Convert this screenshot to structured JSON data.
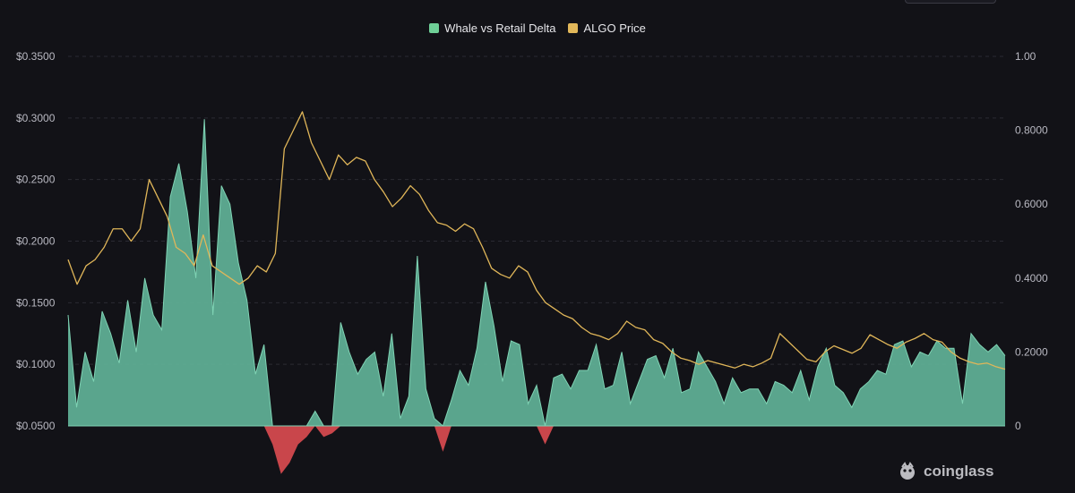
{
  "legend": [
    {
      "label": "Whale vs Retail Delta",
      "color": "#6fcf97"
    },
    {
      "label": "ALGO Price",
      "color": "#e2b85a"
    }
  ],
  "watermark": "coinglass",
  "colors": {
    "delta_positive_fill": "#5fae93",
    "delta_positive_line": "#7fd3b4",
    "delta_negative_fill": "#c9464b",
    "price_line": "#e0b659",
    "grid": "#2b2b33",
    "background": "#121217"
  },
  "chart_data": {
    "type": "area",
    "title": "",
    "grid": true,
    "legend_position": "top-center",
    "y_left": {
      "format": "currency",
      "range": [
        0.05,
        0.35
      ],
      "tick_labels": [
        "$0.3500",
        "$0.3000",
        "$0.2500",
        "$0.2000",
        "$0.1500",
        "$0.1000",
        "$0.0500"
      ],
      "tick_values": [
        0.35,
        0.3,
        0.25,
        0.2,
        0.15,
        0.1,
        0.05
      ]
    },
    "y_right": {
      "range": [
        0,
        1.0
      ],
      "tick_labels": [
        "1.00",
        "0.8000",
        "0.6000",
        "0.4000",
        "0.2000",
        "0"
      ],
      "tick_values": [
        1.0,
        0.8,
        0.6,
        0.4,
        0.2,
        0
      ]
    },
    "x_index_range": [
      0,
      110
    ],
    "series": [
      {
        "name": "Whale vs Retail Delta",
        "axis": "right",
        "style": "area",
        "values": [
          0.3,
          0.05,
          0.2,
          0.12,
          0.31,
          0.25,
          0.17,
          0.34,
          0.2,
          0.4,
          0.3,
          0.26,
          0.62,
          0.71,
          0.58,
          0.4,
          0.83,
          0.3,
          0.65,
          0.6,
          0.44,
          0.34,
          0.14,
          0.22,
          -0.05,
          -0.13,
          -0.1,
          -0.05,
          -0.03,
          0.04,
          -0.03,
          -0.02,
          0.28,
          0.2,
          0.14,
          0.18,
          0.2,
          0.08,
          0.25,
          0.02,
          0.08,
          0.46,
          0.1,
          0.02,
          -0.07,
          0.07,
          0.15,
          0.11,
          0.21,
          0.39,
          0.27,
          0.12,
          0.23,
          0.22,
          0.06,
          0.11,
          -0.05,
          0.13,
          0.14,
          0.1,
          0.15,
          0.15,
          0.22,
          0.1,
          0.11,
          0.2,
          0.06,
          0.12,
          0.18,
          0.19,
          0.13,
          0.21,
          0.09,
          0.1,
          0.2,
          0.16,
          0.12,
          0.06,
          0.13,
          0.09,
          0.1,
          0.1,
          0.06,
          0.12,
          0.11,
          0.09,
          0.15,
          0.07,
          0.16,
          0.21,
          0.11,
          0.09,
          0.05,
          0.1,
          0.12,
          0.15,
          0.14,
          0.22,
          0.23,
          0.16,
          0.2,
          0.19,
          0.23,
          0.21,
          0.21,
          0.06,
          0.25,
          0.22,
          0.2,
          0.22,
          0.19
        ]
      },
      {
        "name": "ALGO Price",
        "axis": "left",
        "style": "line",
        "values": [
          0.185,
          0.165,
          0.18,
          0.185,
          0.195,
          0.21,
          0.21,
          0.2,
          0.21,
          0.25,
          0.235,
          0.22,
          0.195,
          0.19,
          0.18,
          0.205,
          0.18,
          0.175,
          0.17,
          0.165,
          0.17,
          0.18,
          0.175,
          0.19,
          0.275,
          0.29,
          0.305,
          0.28,
          0.265,
          0.25,
          0.27,
          0.262,
          0.268,
          0.265,
          0.25,
          0.24,
          0.228,
          0.235,
          0.245,
          0.238,
          0.225,
          0.215,
          0.213,
          0.208,
          0.214,
          0.21,
          0.195,
          0.178,
          0.173,
          0.17,
          0.18,
          0.175,
          0.16,
          0.15,
          0.145,
          0.14,
          0.137,
          0.13,
          0.125,
          0.123,
          0.12,
          0.125,
          0.135,
          0.13,
          0.128,
          0.12,
          0.117,
          0.11,
          0.105,
          0.103,
          0.1,
          0.103,
          0.101,
          0.099,
          0.097,
          0.1,
          0.098,
          0.101,
          0.105,
          0.125,
          0.118,
          0.111,
          0.104,
          0.102,
          0.11,
          0.115,
          0.112,
          0.109,
          0.113,
          0.124,
          0.12,
          0.116,
          0.113,
          0.118,
          0.121,
          0.125,
          0.12,
          0.118,
          0.11,
          0.105,
          0.102,
          0.1,
          0.101,
          0.098,
          0.096
        ]
      }
    ]
  }
}
